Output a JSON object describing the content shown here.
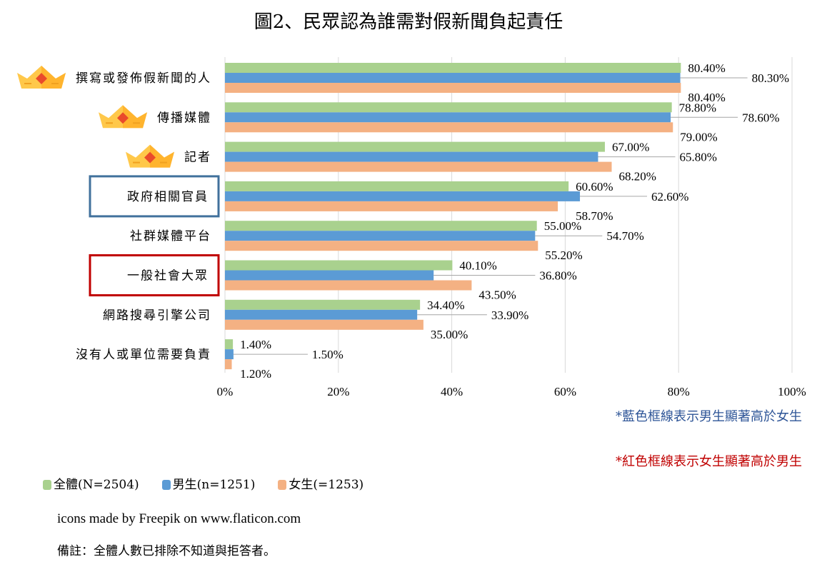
{
  "chart_data": {
    "type": "bar",
    "orientation": "horizontal",
    "title": "圖2、民眾認為誰需對假新聞負起責任",
    "categories": [
      "撰寫或發佈假新聞的人",
      "傳播媒體",
      "記者",
      "政府相關官員",
      "社群媒體平台",
      "一般社會大眾",
      "網路搜尋引擎公司",
      "沒有人或單位需要負責"
    ],
    "series": [
      {
        "name": "全體(N=2504)",
        "color": "#a9d18e",
        "values": [
          80.4,
          78.8,
          67.0,
          60.6,
          55.0,
          40.1,
          34.4,
          1.4
        ]
      },
      {
        "name": "男生(n=1251)",
        "color": "#5b9bd5",
        "values": [
          80.3,
          78.6,
          65.8,
          62.6,
          54.7,
          36.8,
          33.9,
          1.5
        ]
      },
      {
        "name": "女生(=1253)",
        "color": "#f4b183",
        "values": [
          80.4,
          79.0,
          68.2,
          58.7,
          55.2,
          43.5,
          35.0,
          1.2
        ]
      }
    ],
    "xlim": [
      0,
      100
    ],
    "xticks": [
      "0%",
      "20%",
      "40%",
      "60%",
      "80%",
      "100%"
    ],
    "grid": true,
    "legend_position": "bottom-left",
    "crown_icon_categories": [
      0,
      1,
      2
    ],
    "highlight": {
      "blue_box": 3,
      "red_box": 5,
      "blue_color": "#41719c",
      "red_color": "#c00000"
    }
  },
  "notes": {
    "blue": "*藍色框線表示男生顯著高於女生",
    "red": "*紅色框線表示女生顯著高於男生"
  },
  "credit": "icons made by Freepik on www.flaticon.com",
  "remark": "備註：全體人數已排除不知道與拒答者。"
}
